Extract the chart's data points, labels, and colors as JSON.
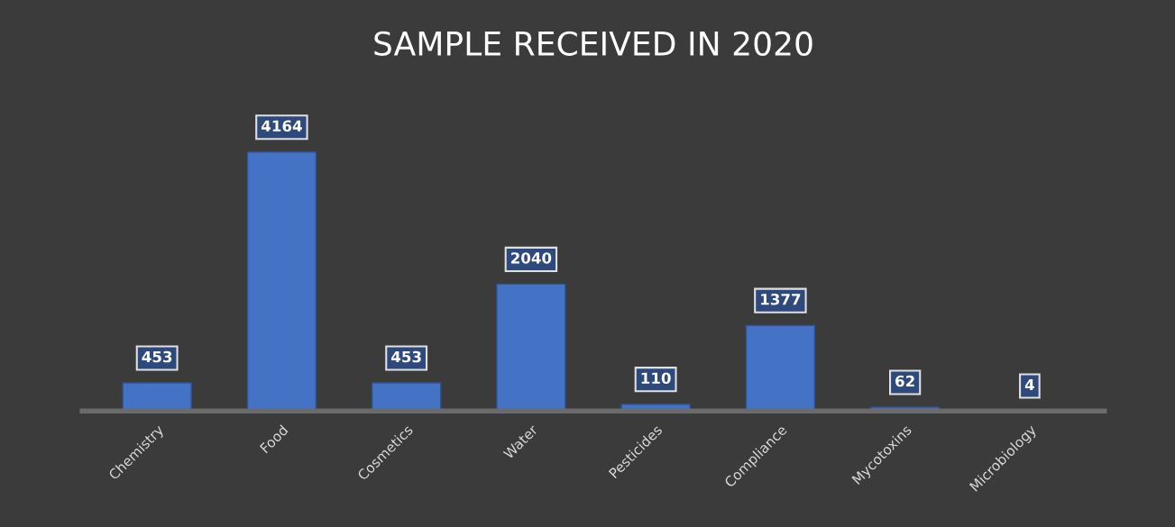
{
  "chart_data": {
    "type": "bar",
    "title": "SAMPLE RECEIVED IN 2020",
    "categories": [
      "Chemistry",
      "Food",
      "Cosmetics",
      "Water",
      "Pesticides",
      "Compliance",
      "Mycotoxins",
      "Microbiology"
    ],
    "values": [
      453,
      4164,
      453,
      2040,
      110,
      1377,
      62,
      4
    ],
    "color": "#4472c4",
    "data_labels": true,
    "grid": false
  }
}
